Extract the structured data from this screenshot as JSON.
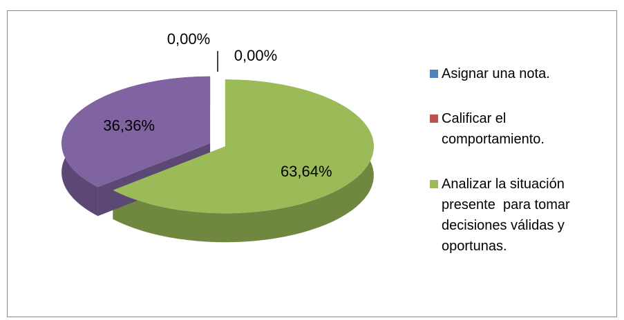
{
  "chart_data": {
    "type": "pie",
    "categories": [
      "Asignar una nota.",
      "Calificar el comportamiento.",
      "Analizar la situación presente  para tomar decisiones válidas y oportunas.",
      null
    ],
    "values": [
      0,
      0,
      63.64,
      36.36
    ],
    "value_labels": [
      "0,00%",
      "0,00%",
      "63,64%",
      "36,36%"
    ],
    "colors": [
      "#4f81bd",
      "#c0504d",
      "#9bbb59",
      "#8064a2"
    ],
    "legend": "right",
    "three_d": true,
    "exploded": true
  }
}
